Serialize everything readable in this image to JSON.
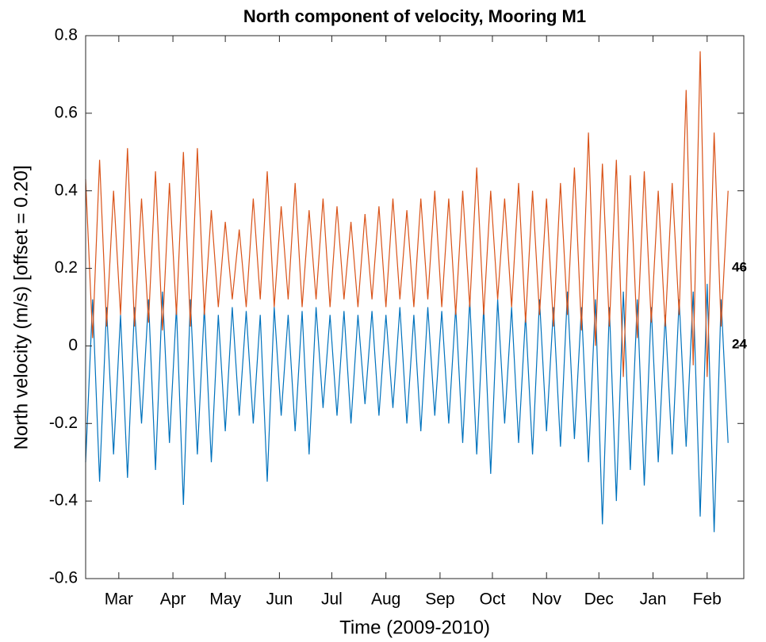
{
  "chart_data": {
    "type": "line",
    "title": "North component of velocity, Mooring M1",
    "x_label": "Time (2009-2010)",
    "y_label": "North velocity (m/s) [offset = 0.20]",
    "xlim": [
      0,
      377
    ],
    "xticks": [
      {
        "value": 19,
        "label": "Mar"
      },
      {
        "value": 50,
        "label": "Apr"
      },
      {
        "value": 80,
        "label": "May"
      },
      {
        "value": 111,
        "label": "Jun"
      },
      {
        "value": 141,
        "label": "Jul"
      },
      {
        "value": 172,
        "label": "Aug"
      },
      {
        "value": 203,
        "label": "Sep"
      },
      {
        "value": 233,
        "label": "Oct"
      },
      {
        "value": 264,
        "label": "Nov"
      },
      {
        "value": 294,
        "label": "Dec"
      },
      {
        "value": 325,
        "label": "Jan"
      },
      {
        "value": 356,
        "label": "Feb"
      }
    ],
    "ylim": [
      -0.6,
      0.8
    ],
    "yticks": [
      -0.6,
      -0.4,
      -0.2,
      0,
      0.2,
      0.4,
      0.6,
      0.8
    ],
    "x": [
      0,
      4,
      8,
      12,
      16,
      20,
      24,
      28,
      32,
      36,
      40,
      44,
      48,
      52,
      56,
      60,
      64,
      68,
      72,
      76,
      80,
      84,
      88,
      92,
      96,
      100,
      104,
      108,
      112,
      116,
      120,
      124,
      128,
      132,
      136,
      140,
      144,
      148,
      152,
      156,
      160,
      164,
      168,
      172,
      176,
      180,
      184,
      188,
      192,
      196,
      200,
      204,
      208,
      212,
      216,
      220,
      224,
      228,
      232,
      236,
      240,
      244,
      248,
      252,
      256,
      260,
      264,
      268,
      272,
      276,
      280,
      284,
      288,
      292,
      296,
      300,
      304,
      308,
      312,
      316,
      320,
      324,
      328,
      332,
      336,
      340,
      344,
      348,
      352,
      356,
      360,
      364,
      368
    ],
    "series": [
      {
        "name": "24",
        "color": "#0072BD",
        "values": [
          -0.3,
          0.12,
          -0.35,
          0.1,
          -0.28,
          0.08,
          -0.34,
          0.1,
          -0.2,
          0.12,
          -0.32,
          0.14,
          -0.25,
          0.1,
          -0.41,
          0.12,
          -0.28,
          0.1,
          -0.3,
          0.08,
          -0.22,
          0.1,
          -0.18,
          0.09,
          -0.2,
          0.08,
          -0.35,
          0.1,
          -0.18,
          0.08,
          -0.22,
          0.09,
          -0.28,
          0.1,
          -0.16,
          0.08,
          -0.18,
          0.09,
          -0.2,
          0.08,
          -0.15,
          0.09,
          -0.18,
          0.08,
          -0.16,
          0.1,
          -0.2,
          0.08,
          -0.22,
          0.1,
          -0.18,
          0.09,
          -0.2,
          0.1,
          -0.25,
          0.12,
          -0.28,
          0.1,
          -0.33,
          0.12,
          -0.2,
          0.1,
          -0.25,
          0.08,
          -0.28,
          0.12,
          -0.22,
          0.1,
          -0.26,
          0.14,
          -0.24,
          0.1,
          -0.3,
          0.12,
          -0.46,
          0.1,
          -0.4,
          0.14,
          -0.32,
          0.12,
          -0.36,
          0.1,
          -0.3,
          0.08,
          -0.28,
          0.12,
          -0.26,
          0.14,
          -0.44,
          0.16,
          -0.48,
          0.12,
          -0.25
        ]
      },
      {
        "name": "46",
        "color": "#D95319",
        "values": [
          0.43,
          0.02,
          0.48,
          0.05,
          0.4,
          0.08,
          0.51,
          0.05,
          0.38,
          0.06,
          0.45,
          0.04,
          0.42,
          0.08,
          0.5,
          0.05,
          0.51,
          0.08,
          0.35,
          0.1,
          0.32,
          0.12,
          0.3,
          0.1,
          0.38,
          0.12,
          0.45,
          0.1,
          0.36,
          0.12,
          0.42,
          0.1,
          0.35,
          0.12,
          0.38,
          0.1,
          0.36,
          0.12,
          0.32,
          0.1,
          0.34,
          0.12,
          0.36,
          0.1,
          0.38,
          0.12,
          0.35,
          0.1,
          0.38,
          0.12,
          0.4,
          0.1,
          0.38,
          0.08,
          0.4,
          0.1,
          0.46,
          0.08,
          0.4,
          0.12,
          0.38,
          0.1,
          0.42,
          0.06,
          0.4,
          0.08,
          0.38,
          0.05,
          0.42,
          0.08,
          0.46,
          0.04,
          0.55,
          0.0,
          0.47,
          0.05,
          0.48,
          -0.08,
          0.44,
          0.02,
          0.45,
          0.06,
          0.4,
          0.05,
          0.42,
          0.08,
          0.66,
          -0.05,
          0.76,
          -0.08,
          0.55,
          0.05,
          0.4
        ]
      }
    ]
  }
}
